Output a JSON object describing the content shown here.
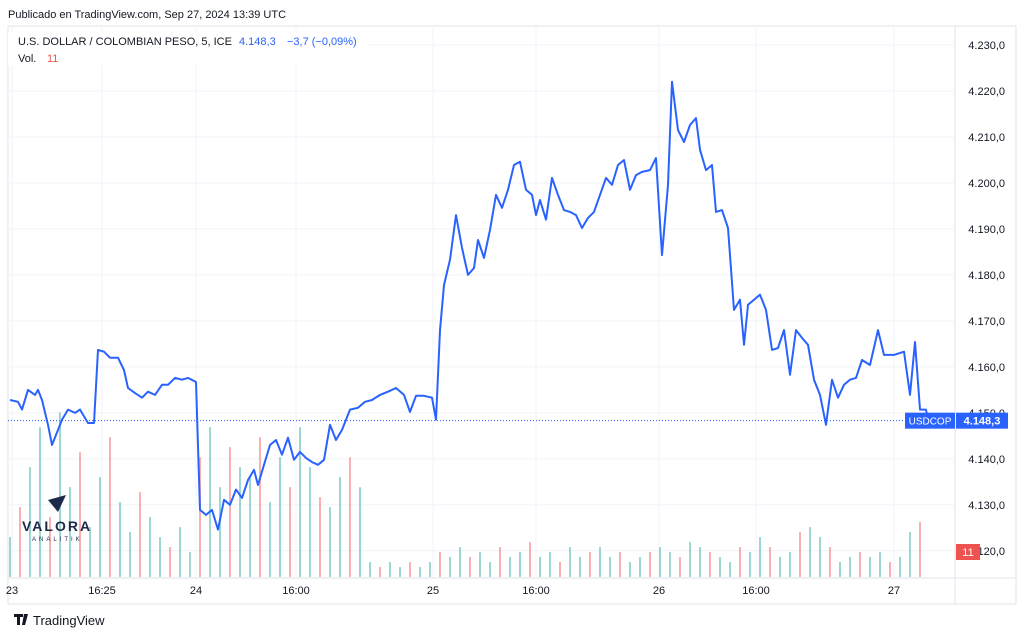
{
  "header": {
    "published": "Publicado en TradingView.com, Sep 27, 2024 13:39 UTC"
  },
  "chart_data": {
    "type": "line",
    "title": "U.S. DOLLAR / COLOMBIAN PESO, 5, ICE",
    "last_price_label": "4.148,3",
    "change_label": "−3,7 (−0,09%)",
    "symbol": "USDCOP",
    "color": "#2962ff",
    "grid": true,
    "xlim": [
      -10,
      945
    ],
    "ylim": [
      4114.3,
      4233.7
    ],
    "xticks": [
      {
        "value": 2,
        "label": "23"
      },
      {
        "value": 92,
        "label": "16:25"
      },
      {
        "value": 186,
        "label": "24"
      },
      {
        "value": 286,
        "label": "16:00"
      },
      {
        "value": 423,
        "label": "25"
      },
      {
        "value": 526,
        "label": "16:00"
      },
      {
        "value": 649,
        "label": "26"
      },
      {
        "value": 746,
        "label": "16:00"
      },
      {
        "value": 884,
        "label": "27"
      }
    ],
    "yticks": [
      {
        "value": 4120,
        "label": "4.120,0"
      },
      {
        "value": 4130,
        "label": "4.130,0"
      },
      {
        "value": 4140,
        "label": "4.140,0"
      },
      {
        "value": 4150,
        "label": "4.150,0"
      },
      {
        "value": 4160,
        "label": "4.160,0"
      },
      {
        "value": 4170,
        "label": "4.170,0"
      },
      {
        "value": 4180,
        "label": "4.180,0"
      },
      {
        "value": 4190,
        "label": "4.190,0"
      },
      {
        "value": 4200,
        "label": "4.200,0"
      },
      {
        "value": 4210,
        "label": "4.210,0"
      },
      {
        "value": 4220,
        "label": "4.220,0"
      },
      {
        "value": 4230,
        "label": "4.230,0"
      }
    ],
    "x": [
      0,
      8,
      12,
      18,
      25,
      28,
      32,
      38,
      42,
      48,
      52,
      58,
      65,
      70,
      78,
      84,
      88,
      94,
      100,
      108,
      114,
      118,
      125,
      132,
      138,
      145,
      152,
      158,
      165,
      172,
      178,
      186,
      190,
      196,
      202,
      208,
      214,
      220,
      226,
      232,
      238,
      244,
      248,
      254,
      260,
      266,
      272,
      278,
      284,
      290,
      296,
      302,
      308,
      314,
      320,
      326,
      332,
      340,
      348,
      355,
      362,
      370,
      378,
      386,
      394,
      400,
      406,
      414,
      422,
      426,
      430,
      434,
      440,
      446,
      452,
      458,
      464,
      468,
      474,
      480,
      486,
      492,
      498,
      504,
      510,
      516,
      522,
      526,
      530,
      536,
      542,
      548,
      554,
      560,
      566,
      572,
      578,
      584,
      590,
      596,
      602,
      608,
      614,
      620,
      626,
      632,
      640,
      646,
      652,
      658,
      662,
      668,
      674,
      680,
      686,
      690,
      696,
      702,
      706,
      712,
      718,
      724,
      730,
      734,
      738,
      744,
      750,
      756,
      762,
      768,
      774,
      780,
      786,
      792,
      798,
      804,
      810,
      816,
      822,
      828,
      834,
      840,
      846,
      852,
      860,
      868,
      874,
      884,
      894,
      900,
      905,
      910,
      916,
      918
    ],
    "values": [
      4152.8,
      4152.4,
      4150.7,
      4155,
      4153.9,
      4155,
      4152.8,
      4147.4,
      4143,
      4146.3,
      4148.5,
      4150.7,
      4150,
      4150.7,
      4147.8,
      4147.8,
      4163.7,
      4163.3,
      4162,
      4162,
      4159.3,
      4155.4,
      4154.3,
      4153.3,
      4154.6,
      4153.9,
      4156.1,
      4156.1,
      4157.6,
      4157.2,
      4157.6,
      4156.7,
      4128.9,
      4127.8,
      4128.9,
      4124.6,
      4131.1,
      4130,
      4133.3,
      4131.5,
      4135.4,
      4137.6,
      4134.3,
      4138.7,
      4143,
      4144.1,
      4140.9,
      4144.6,
      4139.8,
      4141.5,
      4140.2,
      4139.3,
      4138.7,
      4139.8,
      4147.4,
      4144.1,
      4146.3,
      4150.7,
      4151.1,
      4152.4,
      4152.8,
      4153.9,
      4154.6,
      4155.4,
      4153.9,
      4150.2,
      4153.7,
      4153.7,
      4153.3,
      4148.5,
      4168,
      4177.8,
      4183.3,
      4193,
      4185.9,
      4180,
      4181.5,
      4187.6,
      4183.7,
      4189.8,
      4197.4,
      4194.6,
      4198.5,
      4203.9,
      4204.6,
      4198.5,
      4197.4,
      4193,
      4196.3,
      4192,
      4201.1,
      4197.4,
      4194.1,
      4193.7,
      4193,
      4190.2,
      4192.4,
      4193.7,
      4197.4,
      4201.1,
      4199.6,
      4203.9,
      4205,
      4198.5,
      4201.7,
      4202.4,
      4202.8,
      4205.4,
      4184.3,
      4199.6,
      4222,
      4211.5,
      4208.9,
      4212.6,
      4214.1,
      4207.2,
      4202.8,
      4203.9,
      4193.7,
      4194.1,
      4190.2,
      4172.4,
      4174.6,
      4164.8,
      4173.5,
      4174.6,
      4175.7,
      4172.4,
      4163.7,
      4164.1,
      4168,
      4158.3,
      4168,
      4166.3,
      4164.8,
      4157.2,
      4153.9,
      4147.4,
      4157.2,
      4153.3,
      4156.1,
      4157.2,
      4157.6,
      4161.5,
      4160.4,
      4168,
      4162.6,
      4162.6,
      4163.3,
      4153.9,
      4165.4,
      4150.7,
      4150.7,
      4148.3
    ],
    "volume": {
      "label": "Vol.",
      "color": "#26a69a",
      "y2lim": [
        0,
        110
      ],
      "x": [
        0,
        10,
        20,
        30,
        40,
        50,
        60,
        70,
        80,
        90,
        100,
        110,
        120,
        130,
        140,
        150,
        160,
        170,
        180,
        190,
        200,
        210,
        220,
        230,
        240,
        250,
        260,
        270,
        280,
        290,
        300,
        310,
        320,
        330,
        340,
        350,
        360,
        370,
        380,
        390,
        400,
        410,
        420,
        430,
        440,
        450,
        460,
        470,
        480,
        490,
        500,
        510,
        520,
        530,
        540,
        550,
        560,
        570,
        580,
        590,
        600,
        610,
        620,
        630,
        640,
        650,
        660,
        670,
        680,
        690,
        700,
        710,
        720,
        730,
        740,
        750,
        760,
        770,
        780,
        790,
        800,
        810,
        820,
        830,
        840,
        850,
        860,
        870,
        880,
        890,
        900,
        910
      ],
      "values": [
        8,
        14,
        22,
        30,
        12,
        33,
        18,
        25,
        10,
        20,
        28,
        15,
        9,
        17,
        12,
        8,
        6,
        10,
        5,
        24,
        30,
        18,
        26,
        22,
        20,
        28,
        15,
        24,
        18,
        30,
        22,
        16,
        14,
        20,
        24,
        18,
        3,
        2,
        3,
        2,
        3,
        2,
        3,
        5,
        4,
        6,
        4,
        5,
        3,
        6,
        4,
        5,
        7,
        4,
        5,
        3,
        6,
        4,
        5,
        6,
        4,
        5,
        3,
        4,
        5,
        6,
        5,
        4,
        7,
        6,
        5,
        4,
        3,
        6,
        5,
        8,
        6,
        4,
        5,
        9,
        10,
        8,
        6,
        3,
        4,
        5,
        4,
        5,
        3,
        4,
        9,
        11
      ]
    }
  },
  "watermark": {
    "name": "VALORA",
    "sub": "ANALITIK"
  },
  "footer": {
    "brand": "TradingView"
  }
}
